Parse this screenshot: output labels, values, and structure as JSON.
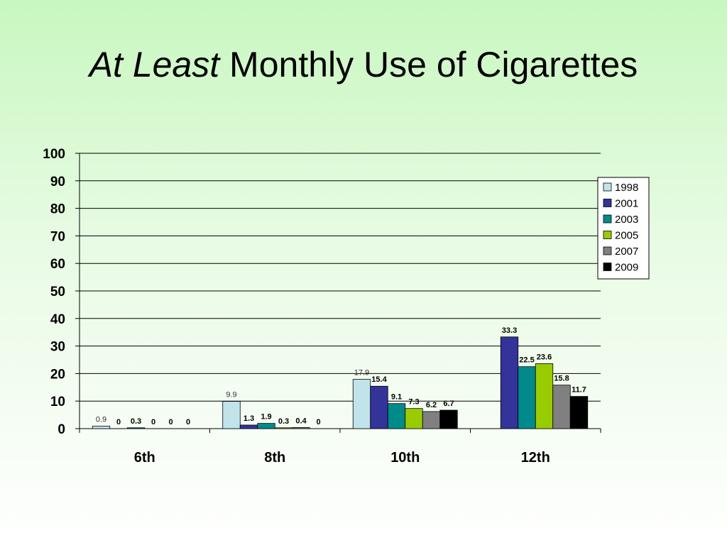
{
  "slide": {
    "title_italic": "At Least",
    "title_rest": "Monthly Use of Cigarettes"
  },
  "colors": {
    "1998": "#c0e4ea",
    "2001": "#333399",
    "2003": "#008b8b",
    "2005": "#99cc00",
    "2007": "#808080",
    "2009": "#000000"
  },
  "chart_data": {
    "type": "bar",
    "title": "At Least Monthly Use of Cigarettes",
    "xlabel": "",
    "ylabel": "",
    "ylim": [
      0,
      100
    ],
    "yticks": [
      0,
      10,
      20,
      30,
      40,
      50,
      60,
      70,
      80,
      90,
      100
    ],
    "grid": true,
    "legend_position": "right",
    "categories": [
      "6th",
      "8th",
      "10th",
      "12th"
    ],
    "series": [
      {
        "name": "1998",
        "values": [
          0.9,
          9.9,
          17.9,
          null
        ],
        "labels": [
          "0.9",
          "9.9",
          "17.9",
          ""
        ]
      },
      {
        "name": "2001",
        "values": [
          0,
          1.3,
          15.4,
          33.3
        ],
        "labels": [
          "0",
          "1.3",
          "15.4",
          "33.3"
        ]
      },
      {
        "name": "2003",
        "values": [
          0.3,
          1.9,
          9.1,
          22.5
        ],
        "labels": [
          "0.3",
          "1.9",
          "9.1",
          "22.5"
        ]
      },
      {
        "name": "2005",
        "values": [
          0,
          0.3,
          7.3,
          23.6
        ],
        "labels": [
          "0",
          "0.3",
          "7.3",
          "23.6"
        ]
      },
      {
        "name": "2007",
        "values": [
          0,
          0.4,
          6.2,
          15.8
        ],
        "labels": [
          "0",
          "0.4",
          "6.2",
          "15.8"
        ]
      },
      {
        "name": "2009",
        "values": [
          0,
          0,
          6.7,
          11.7
        ],
        "labels": [
          "0",
          "0",
          "6.7",
          "11.7"
        ]
      }
    ]
  }
}
